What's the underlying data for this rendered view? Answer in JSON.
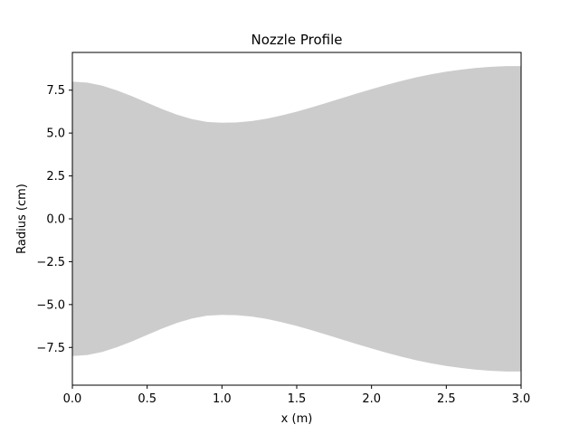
{
  "chart_data": {
    "type": "area",
    "title": "Nozzle Profile",
    "xlabel": "x (m)",
    "ylabel": "Radius (cm)",
    "xlim": [
      0.0,
      3.0
    ],
    "ylim": [
      -9.7,
      9.7
    ],
    "grid": false,
    "legend": "none",
    "fill_color": "#cccccc",
    "x_ticks": [
      0.0,
      0.5,
      1.0,
      1.5,
      2.0,
      2.5,
      3.0
    ],
    "x_tick_labels": [
      "0.0",
      "0.5",
      "1.0",
      "1.5",
      "2.0",
      "2.5",
      "3.0"
    ],
    "y_ticks": [
      7.5,
      5.0,
      2.5,
      0.0,
      -2.5,
      -5.0,
      -7.5
    ],
    "y_tick_labels": [
      "7.5",
      "5.0",
      "2.5",
      "0.0",
      "−2.5",
      "−5.0",
      "−7.5"
    ],
    "series": [
      {
        "x": [
          0.0,
          0.1,
          0.2,
          0.3,
          0.4,
          0.5,
          0.6,
          0.7,
          0.8,
          0.9,
          1.0,
          1.1,
          1.2,
          1.3,
          1.4,
          1.5,
          1.6,
          1.7,
          1.8,
          1.9,
          2.0,
          2.1,
          2.2,
          2.3,
          2.4,
          2.5,
          2.6,
          2.7,
          2.8,
          2.9,
          3.0
        ],
        "upper": [
          8.0,
          7.94,
          7.76,
          7.48,
          7.14,
          6.77,
          6.4,
          6.07,
          5.81,
          5.65,
          5.6,
          5.62,
          5.7,
          5.84,
          6.03,
          6.25,
          6.5,
          6.76,
          7.03,
          7.3,
          7.56,
          7.81,
          8.04,
          8.25,
          8.43,
          8.58,
          8.7,
          8.8,
          8.86,
          8.9,
          8.9
        ],
        "lower": [
          -8.0,
          -7.94,
          -7.76,
          -7.48,
          -7.14,
          -6.77,
          -6.4,
          -6.07,
          -5.81,
          -5.65,
          -5.6,
          -5.62,
          -5.7,
          -5.84,
          -6.03,
          -6.25,
          -6.5,
          -6.76,
          -7.03,
          -7.3,
          -7.56,
          -7.81,
          -8.04,
          -8.25,
          -8.43,
          -8.58,
          -8.7,
          -8.8,
          -8.86,
          -8.9,
          -8.9
        ]
      }
    ]
  }
}
